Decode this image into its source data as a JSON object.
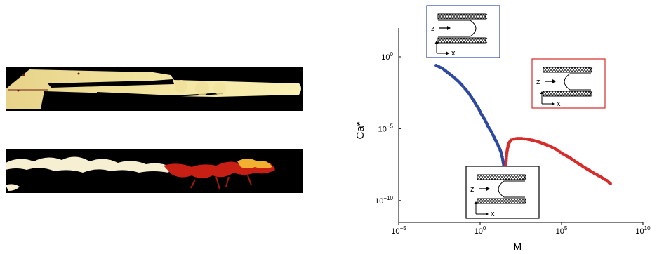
{
  "photos": [
    {
      "name": "displacement-image-top",
      "colormap": "black-yellow-white"
    },
    {
      "name": "displacement-image-bottom",
      "colormap": "black-red-yellow-white"
    }
  ],
  "chart_data": {
    "type": "scatter",
    "x_scale": "log",
    "y_scale": "log",
    "xlabel": "M",
    "ylabel": "Ca*",
    "xlim": [
      1e-05,
      10000000000.0
    ],
    "ylim": [
      3e-12,
      100.0
    ],
    "x_ticks": [
      {
        "value": 1e-05,
        "base": "10",
        "exp": "−5"
      },
      {
        "value": 1.0,
        "base": "10",
        "exp": "0"
      },
      {
        "value": 100000.0,
        "base": "10",
        "exp": "5"
      },
      {
        "value": 10000000000.0,
        "base": "10",
        "exp": "10"
      }
    ],
    "y_ticks": [
      {
        "value": 1.0,
        "base": "10",
        "exp": "0"
      },
      {
        "value": 1e-05,
        "base": "10",
        "exp": "−5"
      },
      {
        "value": 1e-10,
        "base": "10",
        "exp": "−10"
      }
    ],
    "grid": false,
    "series": [
      {
        "color": "#2e49a0",
        "x": [
          0.002,
          0.003,
          0.005,
          0.008,
          0.012,
          0.02,
          0.03,
          0.05,
          0.08,
          0.12,
          0.2,
          0.3,
          0.5,
          0.8,
          1.2,
          2,
          3,
          5,
          8,
          12,
          16,
          20,
          24,
          28,
          31,
          34
        ],
        "y": [
          0.25,
          0.2,
          0.15,
          0.1,
          0.07,
          0.045,
          0.03,
          0.018,
          0.01,
          0.006,
          0.003,
          0.0015,
          0.0006,
          0.00025,
          0.0001,
          4e-05,
          1.5e-05,
          6e-06,
          2e-06,
          8e-07,
          4e-07,
          2e-07,
          8e-08,
          3e-08,
          1.5e-08,
          8e-09
        ]
      },
      {
        "color": "#d62c2c",
        "x": [
          38,
          42,
          48,
          55,
          65,
          80,
          110,
          160,
          250,
          400,
          700,
          1200,
          2500,
          5000,
          10000,
          20000,
          50000,
          100000,
          300000,
          1000000,
          3000000,
          10000000,
          30000000,
          60000000,
          100000000
        ],
        "y": [
          3e-08,
          1.5e-07,
          4e-07,
          8e-07,
          1.2e-06,
          1.6e-06,
          1.9e-06,
          2e-06,
          2.1e-06,
          2e-06,
          1.9e-06,
          1.7e-06,
          1.4e-06,
          1.1e-06,
          8e-07,
          6e-07,
          3.5e-07,
          2e-07,
          1e-07,
          4e-08,
          1.8e-08,
          8e-09,
          4e-09,
          2.5e-09,
          1.5e-09
        ]
      }
    ],
    "insets": [
      {
        "name": "inset-top",
        "border_color": "#2e49a0",
        "z_label": "z",
        "x_label": "x",
        "interface": "convex-finger"
      },
      {
        "name": "inset-right",
        "border_color": "#d62c2c",
        "z_label": "z",
        "x_label": "x",
        "interface": "concave-finger"
      },
      {
        "name": "inset-bottom",
        "border_color": "#000000",
        "z_label": "z",
        "x_label": "x",
        "interface": "concave-finger"
      }
    ]
  }
}
